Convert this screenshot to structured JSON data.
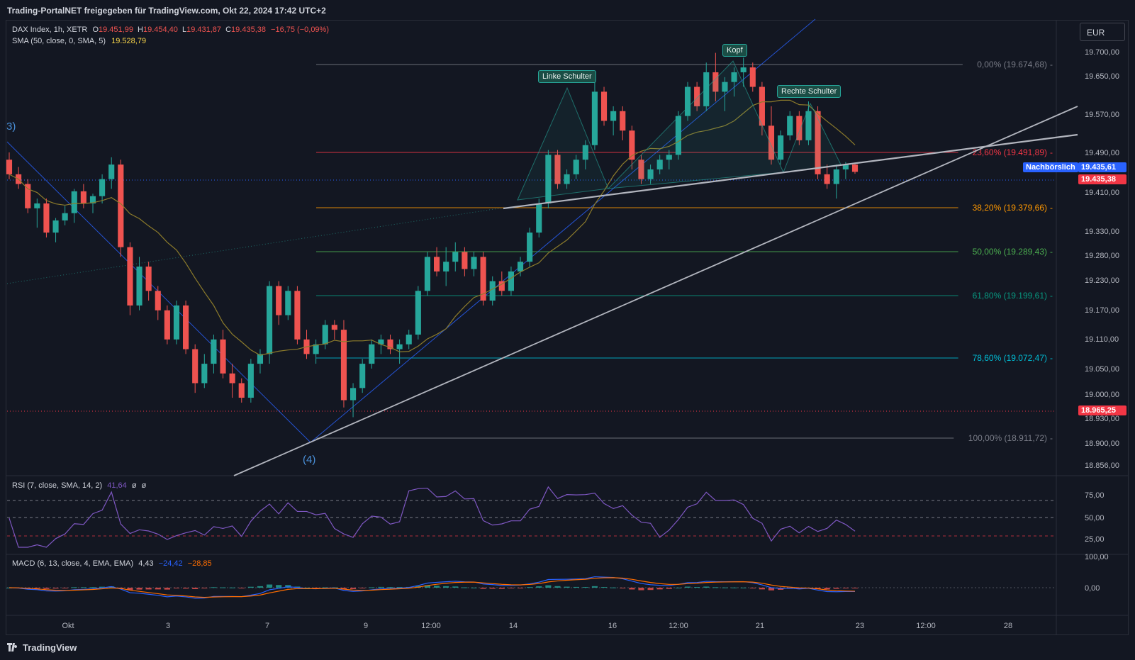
{
  "header": {
    "title": "Trading-PortalNET freigegeben für TradingView.com, Okt 22, 2024 17:42 UTC+2"
  },
  "legend": {
    "symbol": "DAX Index, 1h, XETR",
    "o_label": "O",
    "o_value": "19.451,99",
    "h_label": "H",
    "h_value": "19.454,40",
    "l_label": "L",
    "l_value": "19.431,87",
    "c_label": "C",
    "c_value": "19.435,38",
    "change": "−16,75 (−0,09%)",
    "sma_label": "SMA (50, close, 0, SMA, 5)",
    "sma_value": "19.528,79"
  },
  "currency": "EUR",
  "wave_labels": {
    "w3": "3)",
    "w4": "(4)"
  },
  "pattern_labels": {
    "left_shoulder": "Linke Schulter",
    "head": "Kopf",
    "right_shoulder": "Rechte Schulter"
  },
  "price_tags": {
    "postmarket_label": "Nachbörslich",
    "postmarket_value": "19.435,61",
    "last_value": "19.435,38",
    "level_value": "18.965,25"
  },
  "rsi_legend": {
    "label": "RSI (7, close, SMA, 14, 2)",
    "value": "41,64",
    "ph1": "ø",
    "ph2": "ø"
  },
  "macd_legend": {
    "label": "MACD (6, 13, close, 4, EMA, EMA)",
    "v1": "4,43",
    "v2": "−24,42",
    "v3": "−28,85"
  },
  "footer": {
    "brand": "TradingView"
  },
  "colors": {
    "up": "#26a69a",
    "down": "#ef5350",
    "sma": "#8c7b2b",
    "trend": "#b2b5be",
    "channel": "#2962ff",
    "rsi": "#7e57c2",
    "macd": "#2962ff",
    "signal": "#ff6d00"
  },
  "chart_data": {
    "type": "candlestick",
    "title": "DAX Index, 1h, XETR",
    "x_ticks": [
      "Okt",
      "3",
      "7",
      "9",
      "12:00",
      "14",
      "16",
      "12:00",
      "21",
      "23",
      "12:00",
      "28"
    ],
    "price_ticks": [
      "19.700,00",
      "19.650,00",
      "19.570,00",
      "19.490,00",
      "19.410,00",
      "19.330,00",
      "19.280,00",
      "19.230,00",
      "19.170,00",
      "19.110,00",
      "19.050,00",
      "19.000,00",
      "18.930,00",
      "18.900,00",
      "18.856,00"
    ],
    "rsi_ticks": [
      "75,00",
      "50,00",
      "25,00"
    ],
    "macd_ticks": [
      "100,00",
      "0,00"
    ],
    "fib_levels": [
      {
        "label": "0,00% (19.674,68)",
        "value": 19674.68,
        "color": "#787b86"
      },
      {
        "label": "23,60% (19.491,89)",
        "value": 19491.89,
        "color": "#f23645"
      },
      {
        "label": "38,20% (19.379,66)",
        "value": 19379.66,
        "color": "#ff9800"
      },
      {
        "label": "50,00% (19.289,43)",
        "value": 19289.43,
        "color": "#4caf50"
      },
      {
        "label": "61,80% (19.199,61)",
        "value": 19199.61,
        "color": "#089981"
      },
      {
        "label": "78,60% (19.072,47)",
        "value": 19072.47,
        "color": "#00bcd4"
      },
      {
        "label": "100,00% (18.911,72)",
        "value": 18911.72,
        "color": "#787b86"
      }
    ],
    "candles": [
      [
        19460,
        19475,
        19420,
        19430
      ],
      [
        19430,
        19445,
        19400,
        19410
      ],
      [
        19410,
        19420,
        19350,
        19360
      ],
      [
        19360,
        19380,
        19320,
        19370
      ],
      [
        19370,
        19380,
        19300,
        19310
      ],
      [
        19310,
        19340,
        19290,
        19335
      ],
      [
        19335,
        19365,
        19325,
        19350
      ],
      [
        19350,
        19400,
        19330,
        19395
      ],
      [
        19395,
        19410,
        19360,
        19370
      ],
      [
        19370,
        19390,
        19350,
        19385
      ],
      [
        19385,
        19430,
        19370,
        19420
      ],
      [
        19420,
        19465,
        19400,
        19450
      ],
      [
        19450,
        19460,
        19260,
        19280
      ],
      [
        19280,
        19290,
        19140,
        19160
      ],
      [
        19160,
        19260,
        19150,
        19240
      ],
      [
        19240,
        19250,
        19170,
        19190
      ],
      [
        19190,
        19200,
        19130,
        19150
      ],
      [
        19150,
        19160,
        19080,
        19090
      ],
      [
        19090,
        19170,
        19080,
        19160
      ],
      [
        19160,
        19170,
        19060,
        19070
      ],
      [
        19070,
        19080,
        18980,
        19000
      ],
      [
        19000,
        19060,
        18990,
        19040
      ],
      [
        19040,
        19100,
        19020,
        19090
      ],
      [
        19090,
        19110,
        19010,
        19020
      ],
      [
        19020,
        19040,
        18970,
        19000
      ],
      [
        19000,
        19010,
        18960,
        18970
      ],
      [
        18970,
        19050,
        18960,
        19040
      ],
      [
        19040,
        19070,
        19020,
        19060
      ],
      [
        19060,
        19210,
        19040,
        19200
      ],
      [
        19200,
        19210,
        19120,
        19140
      ],
      [
        19140,
        19200,
        19130,
        19190
      ],
      [
        19190,
        19200,
        19080,
        19090
      ],
      [
        19090,
        19110,
        19050,
        19060
      ],
      [
        19060,
        19090,
        19040,
        19080
      ],
      [
        19080,
        19130,
        19070,
        19120
      ],
      [
        19120,
        19130,
        19090,
        19110
      ],
      [
        19110,
        19130,
        18950,
        18965
      ],
      [
        18965,
        19000,
        18930,
        18990
      ],
      [
        18990,
        19050,
        18980,
        19040
      ],
      [
        19040,
        19090,
        19030,
        19080
      ],
      [
        19080,
        19100,
        19060,
        19090
      ],
      [
        19090,
        19100,
        19060,
        19070
      ],
      [
        19070,
        19090,
        19040,
        19080
      ],
      [
        19080,
        19110,
        19070,
        19100
      ],
      [
        19100,
        19200,
        19090,
        19190
      ],
      [
        19190,
        19270,
        19180,
        19260
      ],
      [
        19260,
        19280,
        19220,
        19230
      ],
      [
        19230,
        19280,
        19200,
        19250
      ],
      [
        19250,
        19290,
        19230,
        19270
      ],
      [
        19270,
        19280,
        19220,
        19235
      ],
      [
        19235,
        19270,
        19220,
        19260
      ],
      [
        19260,
        19270,
        19160,
        19170
      ],
      [
        19170,
        19220,
        19160,
        19210
      ],
      [
        19210,
        19230,
        19180,
        19190
      ],
      [
        19190,
        19240,
        19180,
        19230
      ],
      [
        19230,
        19260,
        19220,
        19250
      ],
      [
        19250,
        19320,
        19240,
        19310
      ],
      [
        19310,
        19380,
        19300,
        19370
      ],
      [
        19370,
        19480,
        19360,
        19470
      ],
      [
        19470,
        19480,
        19400,
        19410
      ],
      [
        19410,
        19440,
        19400,
        19430
      ],
      [
        19430,
        19470,
        19420,
        19460
      ],
      [
        19460,
        19500,
        19440,
        19490
      ],
      [
        19490,
        19620,
        19480,
        19600
      ],
      [
        19600,
        19610,
        19530,
        19540
      ],
      [
        19540,
        19570,
        19510,
        19560
      ],
      [
        19560,
        19570,
        19500,
        19520
      ],
      [
        19520,
        19530,
        19440,
        19460
      ],
      [
        19460,
        19470,
        19410,
        19420
      ],
      [
        19420,
        19450,
        19410,
        19440
      ],
      [
        19440,
        19470,
        19430,
        19460
      ],
      [
        19460,
        19480,
        19440,
        19470
      ],
      [
        19470,
        19560,
        19460,
        19550
      ],
      [
        19550,
        19620,
        19540,
        19610
      ],
      [
        19610,
        19620,
        19560,
        19570
      ],
      [
        19570,
        19660,
        19560,
        19640
      ],
      [
        19640,
        19680,
        19580,
        19600
      ],
      [
        19600,
        19630,
        19560,
        19620
      ],
      [
        19620,
        19650,
        19590,
        19640
      ],
      [
        19640,
        19670,
        19610,
        19650
      ],
      [
        19650,
        19660,
        19600,
        19610
      ],
      [
        19610,
        19620,
        19510,
        19530
      ],
      [
        19530,
        19570,
        19450,
        19460
      ],
      [
        19460,
        19520,
        19450,
        19510
      ],
      [
        19510,
        19560,
        19500,
        19550
      ],
      [
        19550,
        19560,
        19490,
        19500
      ],
      [
        19500,
        19580,
        19490,
        19560
      ],
      [
        19560,
        19570,
        19420,
        19430
      ],
      [
        19430,
        19450,
        19400,
        19410
      ],
      [
        19410,
        19450,
        19380,
        19440
      ],
      [
        19440,
        19455,
        19420,
        19450
      ],
      [
        19450,
        19454,
        19431,
        19435
      ]
    ]
  }
}
